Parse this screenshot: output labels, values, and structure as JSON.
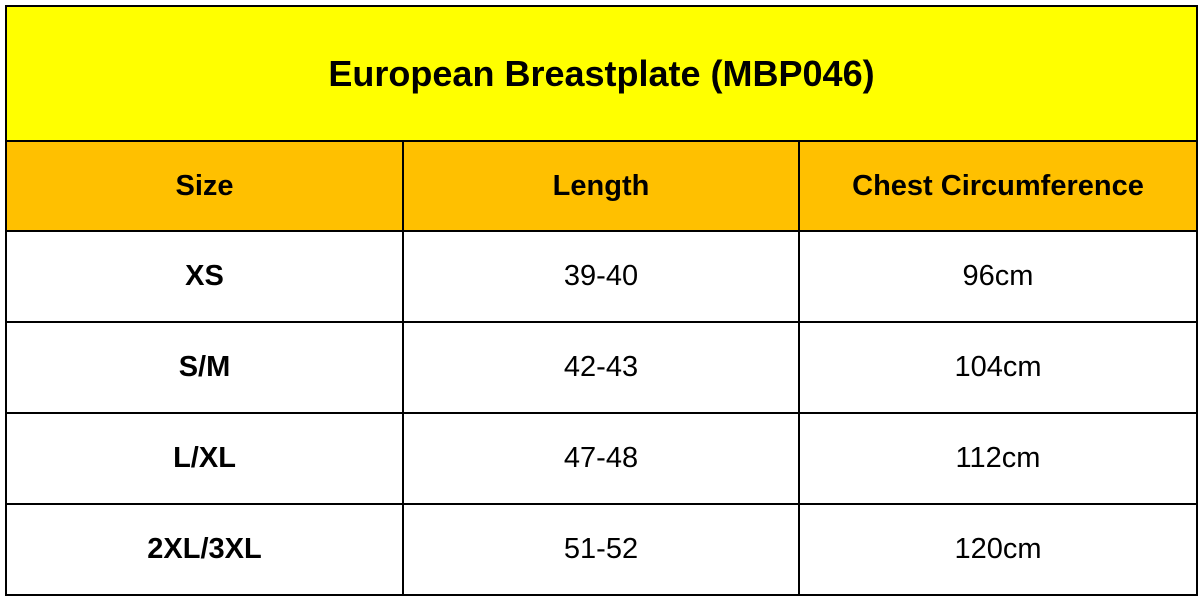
{
  "title": "European Breastplate (MBP046)",
  "table": {
    "header": [
      "Size",
      "Length",
      "Chest Circumference"
    ],
    "rows": [
      [
        "XS",
        "39-40",
        "96cm"
      ],
      [
        "S/M",
        "42-43",
        "104cm"
      ],
      [
        "L/XL",
        "47-48",
        "112cm"
      ],
      [
        "2XL/3XL",
        "51-52",
        "120cm"
      ]
    ]
  }
}
